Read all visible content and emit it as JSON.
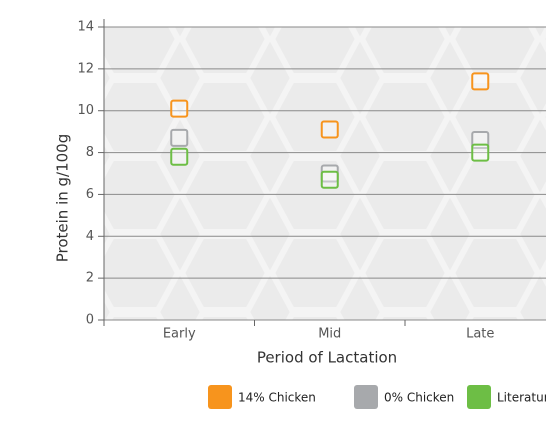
{
  "chart_data": {
    "type": "scatter",
    "x_label": "Period of Lactation",
    "y_label": "Protein in g/100g",
    "categories": [
      "Early",
      "Mid",
      "Late"
    ],
    "series": [
      {
        "name": "14% Chicken",
        "color": "#f7941d",
        "values": [
          10.1,
          9.1,
          11.4
        ]
      },
      {
        "name": "0% Chicken",
        "color": "#a7a9ac",
        "values": [
          8.7,
          7.0,
          8.6
        ]
      },
      {
        "name": "Literature",
        "color": "#6dbe45",
        "values": [
          7.8,
          6.7,
          8.0
        ]
      }
    ],
    "ylim": [
      0,
      14
    ],
    "yticks": [
      0,
      2,
      4,
      6,
      8,
      10,
      12,
      14
    ],
    "grid": true,
    "legend": "bottom"
  }
}
